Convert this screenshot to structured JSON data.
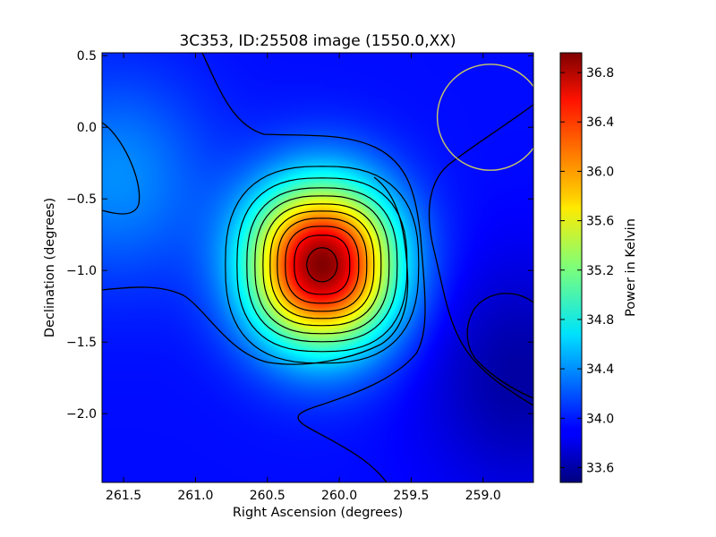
{
  "chart_data": {
    "type": "heatmap",
    "title": "3C353, ID:25508 image (1550.0,XX)",
    "xlabel": "Right Ascension (degrees)",
    "ylabel": "Declination (degrees)",
    "colorbar_label": "Power in Kelvin",
    "x_inverted": true,
    "xlim": [
      261.65,
      258.65
    ],
    "ylim": [
      -2.48,
      0.52
    ],
    "x_ticks": [
      261.5,
      261.0,
      260.5,
      260.0,
      259.5,
      259.0
    ],
    "x_tick_labels": [
      "261.5",
      "261.0",
      "260.5",
      "260.0",
      "259.5",
      "259.0"
    ],
    "y_ticks": [
      0.5,
      0.0,
      -0.5,
      -1.0,
      -1.5,
      -2.0
    ],
    "y_tick_labels": [
      "0.5",
      "0.0",
      "−0.5",
      "−1.0",
      "−1.5",
      "−2.0"
    ],
    "colorbar_range": [
      33.48,
      36.96
    ],
    "colorbar_ticks": [
      33.6,
      34.0,
      34.4,
      34.8,
      35.2,
      35.6,
      36.0,
      36.4,
      36.8
    ],
    "colorbar_tick_labels": [
      "33.6",
      "34.0",
      "34.4",
      "34.8",
      "35.2",
      "35.6",
      "36.0",
      "36.4",
      "36.8"
    ],
    "colormap": "jet",
    "source_peak": {
      "ra": 260.12,
      "dec": -0.96,
      "value": 36.95
    },
    "beam_circle": {
      "ra_center": 258.95,
      "dec_center": 0.07,
      "radius_deg": 0.37,
      "color": "#c8c864"
    },
    "contour_color": "#000000"
  }
}
